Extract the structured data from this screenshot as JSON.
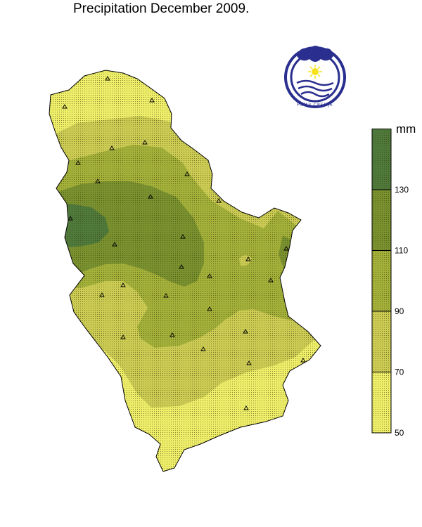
{
  "title": "Precipitation December 2009.",
  "legend": {
    "unit": "mm",
    "ticks": [
      "50",
      "70",
      "90",
      "110",
      "130"
    ],
    "classes": [
      {
        "from": 50,
        "to": 70,
        "color": "#eeee6a"
      },
      {
        "from": 70,
        "to": 90,
        "color": "#cccc55"
      },
      {
        "from": 90,
        "to": 110,
        "color": "#a3b13a"
      },
      {
        "from": 110,
        "to": 130,
        "color": "#7a9130"
      },
      {
        "from": 130,
        "to": 150,
        "color": "#4f7a3c"
      }
    ]
  },
  "logo": {
    "text": "РХМЗ СРБИЈЕ"
  },
  "colors": {
    "outline": "#000000",
    "stipple": "#333300",
    "logo_blue": "#2a2f8f",
    "logo_sun": "#f6e21a"
  },
  "station_marker": "triangle"
}
